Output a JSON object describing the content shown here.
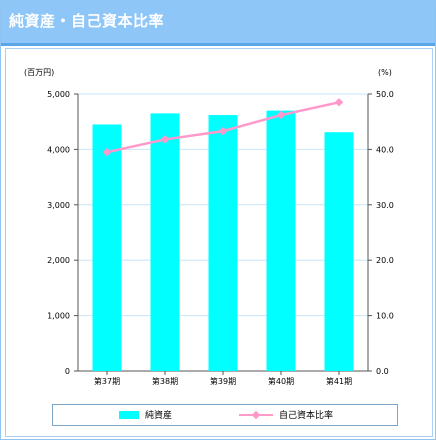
{
  "title": "純資産・自己資本比率",
  "chart_data": {
    "type": "bar+line",
    "categories": [
      "第37期",
      "第38期",
      "第39期",
      "第40期",
      "第41期"
    ],
    "series": [
      {
        "name": "純資産",
        "type": "bar",
        "axis": "left",
        "color": "#00ffff",
        "values": [
          4450,
          4650,
          4620,
          4700,
          4310
        ]
      },
      {
        "name": "自己資本比率",
        "type": "line",
        "axis": "right",
        "color": "#ff99cc",
        "values": [
          39.5,
          41.8,
          43.3,
          46.2,
          48.5
        ]
      }
    ],
    "y_left": {
      "unit_label": "(百万円)",
      "range": [
        0,
        5000
      ],
      "ticks": [
        "0",
        "1,000",
        "2,000",
        "3,000",
        "4,000",
        "5,000"
      ]
    },
    "y_right": {
      "unit_label": "(%)",
      "range": [
        0,
        50
      ],
      "ticks": [
        "0.0",
        "10.0",
        "20.0",
        "30.0",
        "40.0",
        "50.0"
      ]
    },
    "grid": true,
    "legend_position": "bottom"
  }
}
